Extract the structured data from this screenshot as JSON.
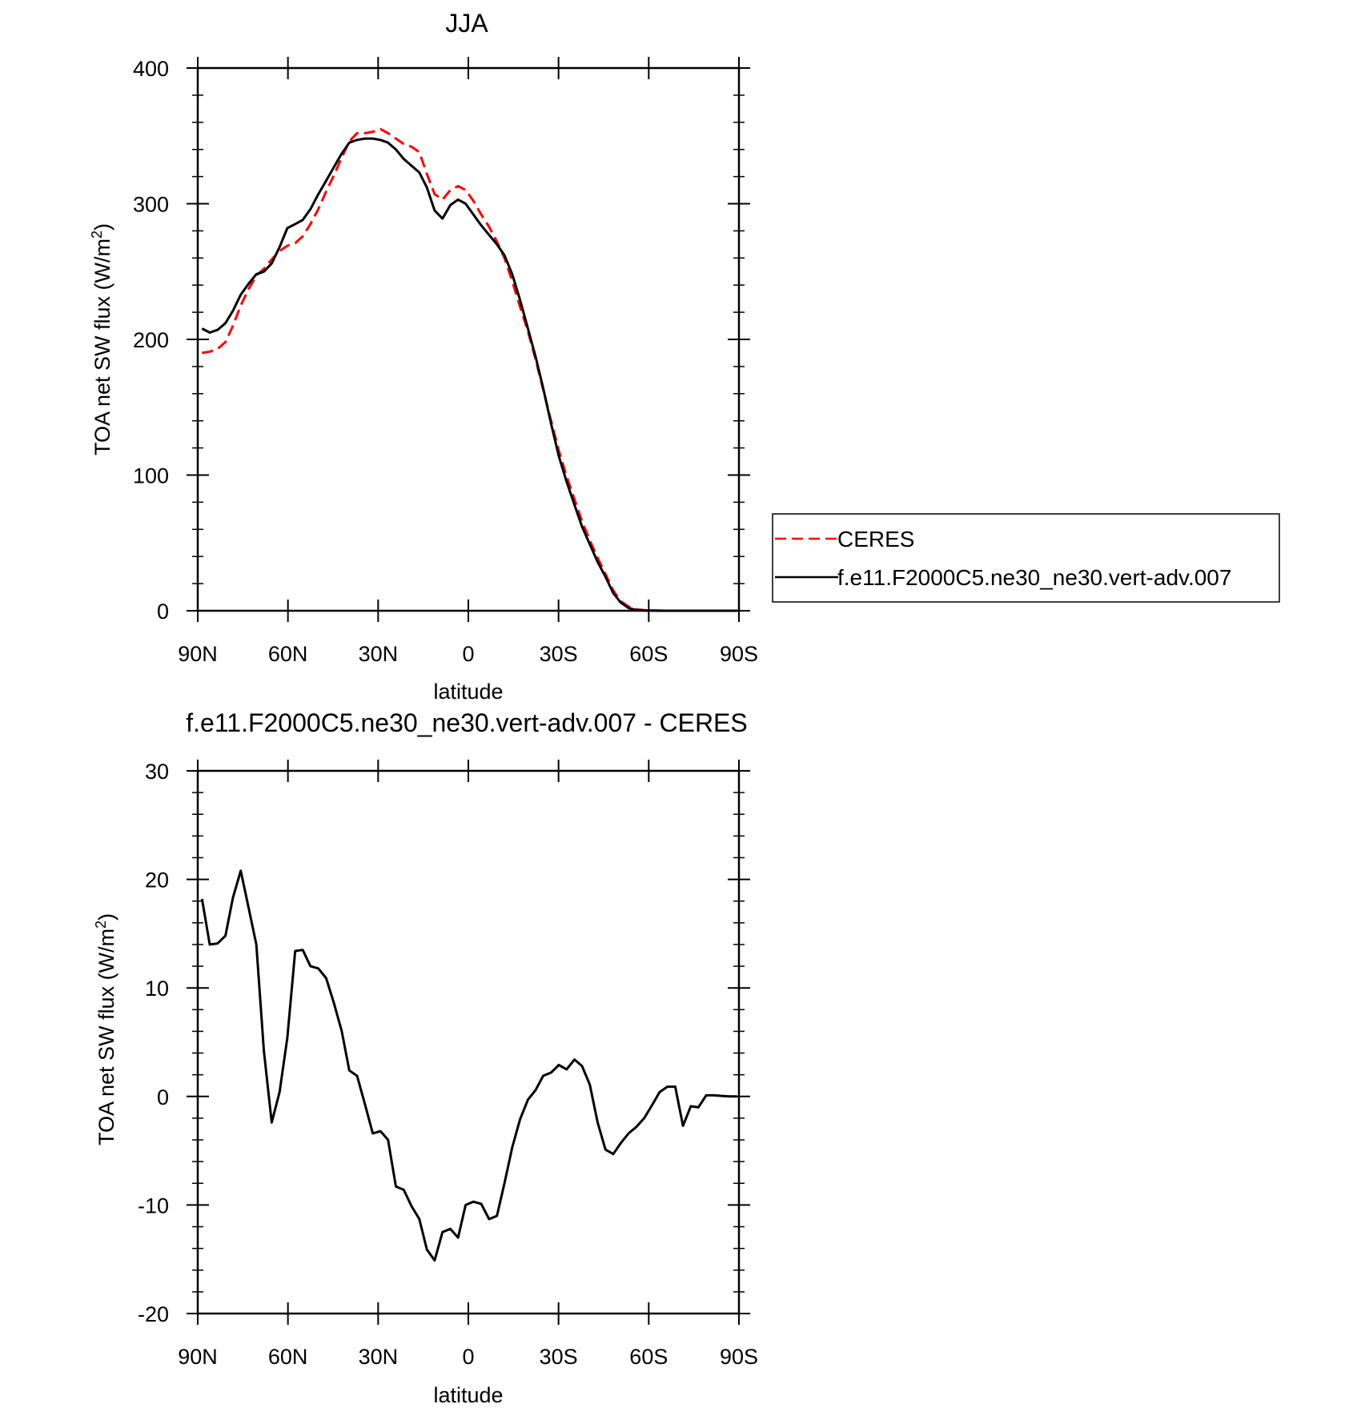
{
  "chart_data": [
    {
      "type": "line",
      "title": "JJA",
      "xlabel": "latitude",
      "ylabel": "TOA net SW flux (W/m2)",
      "ylabel_main": "TOA net SW flux (W/m",
      "ylabel_sup": "2",
      "ylabel_close": ")",
      "xlim": [
        90,
        -90
      ],
      "ylim": [
        0,
        400
      ],
      "yticks": [
        0,
        100,
        200,
        300,
        400
      ],
      "ytick_labels": [
        "0",
        "100",
        "200",
        "300",
        "400"
      ],
      "xticks": [
        90,
        60,
        30,
        0,
        -30,
        -60,
        -90
      ],
      "xtick_labels": [
        "90N",
        "60N",
        "30N",
        "0",
        "30S",
        "60S",
        "90S"
      ],
      "legend": {
        "placement": "right, outside plot",
        "entries": [
          {
            "label": "CERES",
            "color": "#ff0000",
            "dash": "dashed"
          },
          {
            "label": "f.e11.F2000C5.ne30_ne30.vert-adv.007",
            "color": "#000000",
            "dash": "solid"
          }
        ]
      },
      "x": [
        88.6,
        86,
        83.4,
        80.8,
        78.3,
        75.7,
        73.1,
        70.5,
        68,
        65.4,
        62.8,
        60.2,
        57.6,
        55.1,
        52.5,
        49.9,
        47.3,
        44.7,
        42.1,
        39.6,
        37,
        34.4,
        31.8,
        29.2,
        26.7,
        24.1,
        21.5,
        18.9,
        16.3,
        13.8,
        11.2,
        8.6,
        6,
        3.4,
        0.9,
        -1.7,
        -4.3,
        -6.9,
        -9.5,
        -12,
        -14.6,
        -17.2,
        -19.8,
        -22.4,
        -24.9,
        -27.5,
        -30.1,
        -32.7,
        -35.3,
        -37.8,
        -40.4,
        -43,
        -45.6,
        -48.2,
        -50.7,
        -53.3,
        -55.9,
        -58.5,
        -61.1,
        -63.6,
        -66.2,
        -68.8,
        -71.4,
        -74,
        -76.5,
        -79.1,
        -81.7,
        -84.3,
        -86.9,
        -89.4
      ],
      "series": [
        {
          "name": "CERES",
          "color": "#ff0000",
          "dash": "dashed",
          "values": [
            190,
            191,
            193,
            198,
            210,
            225,
            237,
            247,
            252,
            259,
            265,
            269,
            271,
            276,
            285,
            296,
            309,
            321,
            334,
            346,
            352,
            352,
            353,
            355,
            352,
            348,
            344,
            342,
            338,
            322,
            307,
            303,
            310,
            313,
            310,
            302,
            292,
            283,
            272,
            260,
            243,
            224,
            206,
            185,
            163,
            140,
            118,
            99,
            82,
            66,
            52,
            39,
            27,
            15,
            7,
            3,
            1,
            0.5,
            0.2,
            0.1,
            0,
            0,
            0,
            0,
            0,
            0,
            0,
            0,
            0,
            0
          ]
        },
        {
          "name": "f.e11.F2000C5.ne30_ne30.vert-adv.007",
          "color": "#000000",
          "dash": "solid",
          "values": [
            208,
            205,
            207,
            212,
            221,
            233,
            241,
            248,
            250,
            256,
            268,
            282,
            285,
            288,
            296,
            307,
            317,
            327,
            337,
            345,
            347,
            348,
            348,
            347,
            345,
            340,
            333,
            328,
            323,
            312,
            295,
            289,
            299,
            303,
            300,
            292,
            284,
            277,
            270,
            262,
            248,
            229,
            208,
            187,
            164,
            138,
            114,
            95,
            78,
            62,
            49,
            36,
            25,
            13,
            6,
            2,
            0.5,
            0.2,
            0.1,
            0,
            0,
            0,
            0,
            0,
            0,
            0,
            0,
            0,
            0,
            0
          ]
        }
      ]
    },
    {
      "type": "line",
      "title": "f.e11.F2000C5.ne30_ne30.vert-adv.007 - CERES",
      "xlabel": "latitude",
      "ylabel": "TOA net SW flux (W/m2)",
      "ylabel_main": "TOA net SW flux (W/m",
      "ylabel_sup": "2",
      "ylabel_close": ")",
      "xlim": [
        90,
        -90
      ],
      "ylim": [
        -20,
        30
      ],
      "yticks": [
        -20,
        -10,
        0,
        10,
        20,
        30
      ],
      "ytick_labels": [
        "-20",
        "-10",
        "0",
        "10",
        "20",
        "30"
      ],
      "xticks": [
        90,
        60,
        30,
        0,
        -30,
        -60,
        -90
      ],
      "xtick_labels": [
        "90N",
        "60N",
        "30N",
        "0",
        "30S",
        "60S",
        "90S"
      ],
      "series": [
        {
          "name": "f.e11.F2000C5.ne30_ne30.vert-adv.007 - CERES",
          "color": "#000000",
          "dash": "solid",
          "x": [
            88.6,
            86,
            83.4,
            80.8,
            78.3,
            75.7,
            73.1,
            70.5,
            68,
            65.4,
            62.8,
            60.2,
            57.6,
            55.1,
            52.5,
            49.9,
            47.3,
            44.7,
            42.1,
            39.6,
            37,
            34.4,
            31.8,
            29.2,
            26.7,
            24.1,
            21.5,
            18.9,
            16.3,
            13.8,
            11.2,
            8.6,
            6,
            3.4,
            0.9,
            -1.7,
            -4.3,
            -6.9,
            -9.5,
            -12,
            -14.6,
            -17.2,
            -19.8,
            -22.4,
            -24.9,
            -27.5,
            -30.1,
            -32.7,
            -35.3,
            -37.8,
            -40.4,
            -43,
            -45.6,
            -48.2,
            -50.7,
            -53.3,
            -55.9,
            -58.5,
            -61.1,
            -63.6,
            -66.2,
            -68.8,
            -71.4,
            -74,
            -76.5,
            -79.1,
            -81.7,
            -84.3,
            -86.9,
            -89.4
          ],
          "values": [
            18.2,
            14,
            14.1,
            14.8,
            18.3,
            20.8,
            17.4,
            14,
            4.2,
            -2.4,
            0.4,
            5.4,
            13.4,
            13.5,
            12,
            11.8,
            10.9,
            8.6,
            6,
            2.4,
            1.9,
            -0.7,
            -3.4,
            -3.2,
            -4,
            -8.3,
            -8.6,
            -10.1,
            -11.3,
            -14.1,
            -15.1,
            -12.5,
            -12.2,
            -13,
            -10,
            -9.7,
            -9.9,
            -11.3,
            -11,
            -8,
            -4.7,
            -2.1,
            -0.3,
            0.6,
            1.9,
            2.2,
            2.9,
            2.5,
            3.4,
            2.8,
            1.1,
            -2.4,
            -4.9,
            -5.3,
            -4.3,
            -3.4,
            -2.8,
            -2,
            -0.8,
            0.4,
            0.9,
            0.9,
            -2.7,
            -0.9,
            -1,
            0.1,
            0.1,
            0.05,
            0,
            0
          ]
        }
      ]
    }
  ]
}
